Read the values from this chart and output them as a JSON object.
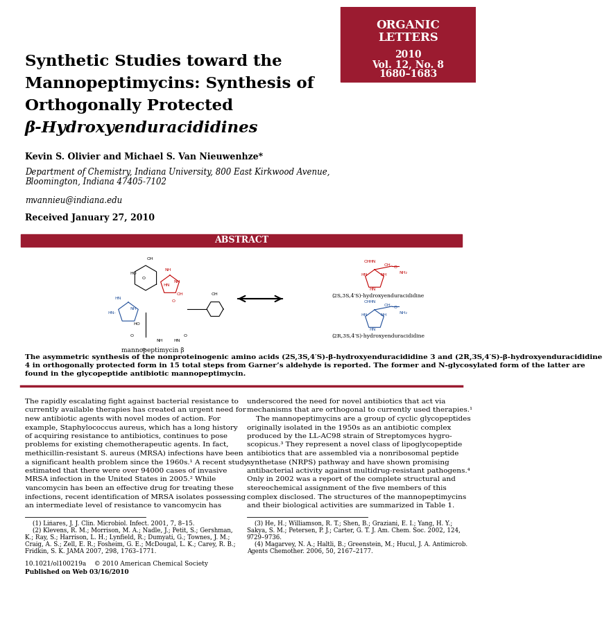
{
  "bg_color": "#ffffff",
  "journal_box_color": "#9B1B30",
  "journal_title_lines": [
    "ORGANIC",
    "LETTERS"
  ],
  "journal_info_lines": [
    "2010",
    "Vol. 12, No. 8",
    "1680–1683"
  ],
  "paper_title_lines": [
    "Synthetic Studies toward the",
    "Mannopeptimycins: Synthesis of",
    "Orthogonally Protected",
    "β-Hydroxyenduracididines"
  ],
  "authors": "Kevin S. Olivier and Michael S. Van Nieuwenhze*",
  "affiliation1": "Department of Chemistry, Indiana University, 800 East Kirkwood Avenue,",
  "affiliation2": "Bloomington, Indiana 47405-7102",
  "email": "mvannieu@indiana.edu",
  "received": "Received January 27, 2010",
  "abstract_label": "ABSTRACT",
  "abstract_bar_color": "#9B1B30",
  "mannopeptimycin_label": "mannopeptimycin β",
  "compound1_label": "(2S,3S,4′S)-hydroxyenduracididine",
  "compound2_label": "(2R,3S,4′S)-hydroxyenduracididine",
  "abstract_text_line1": "The asymmetric synthesis of the nonproteinogenic amino acids (2S,3S,4′S)-β-hydroxyenduracididine 3 and (2R,3S,4′S)-β-hydroxyenduracididine",
  "abstract_text_line2": "4 in orthogonally protected form in 15 total steps from Garner’s aldehyde is reported. The former and N-glycosylated form of the latter are",
  "abstract_text_line3": "found in the glycopeptide antibiotic mannopeptimycin.",
  "body_col1_lines": [
    "The rapidly escalating fight against bacterial resistance to",
    "currently available therapies has created an urgent need for",
    "new antibiotic agents with novel modes of action. For",
    "example, Staphylococcus aureus, which has a long history",
    "of acquiring resistance to antibiotics, continues to pose",
    "problems for existing chemotherapeutic agents. In fact,",
    "methicillin-resistant S. aureus (MRSA) infections have been",
    "a significant health problem since the 1960s.¹ A recent study",
    "estimated that there were over 94000 cases of invasive",
    "MRSA infection in the United States in 2005.² While",
    "vancomycin has been an effective drug for treating these",
    "infections, recent identification of MRSA isolates possessing",
    "an intermediate level of resistance to vancomycin has"
  ],
  "body_col2_lines": [
    "underscored the need for novel antibiotics that act via",
    "mechanisms that are orthogonal to currently used therapies.¹",
    "    The mannopeptimycins are a group of cyclic glycopeptides",
    "originally isolated in the 1950s as an antibiotic complex",
    "produced by the LL-AC98 strain of Streptomyces hygro-",
    "scopicus.³ They represent a novel class of lipoglycopeptide",
    "antibiotics that are assembled via a nonribosomal peptide",
    "synthetase (NRPS) pathway and have shown promising",
    "antibacterial activity against multidrug-resistant pathogens.⁴",
    "Only in 2002 was a report of the complete structural and",
    "stereochemical assignment of the five members of this",
    "complex disclosed. The structures of the mannopeptimycins",
    "and their biological activities are summarized in Table 1."
  ],
  "footnote_col1_lines": [
    "    (1) Liñares, J. J. Clin. Microbiol. Infect. 2001, 7, 8–15.",
    "    (2) Klevens, R. M.; Morrison, M. A.; Nadle, J.; Petit, S.; Gershman,",
    "K.; Ray, S.; Harrison, L. H.; Lynfield, R.; Dumyati, G.; Townes, J. M.;",
    "Craig, A. S.; Zell, E. R.; Fosheim, G. E.; McDougal, L. K.; Carey, R. B.;",
    "Fridkin, S. K. JAMA 2007, 298, 1763–1771."
  ],
  "footnote_col2_lines": [
    "    (3) He, H.; Williamson, R. T.; Shen, B.; Graziani, E. I.; Yang, H. Y.;",
    "Sakya, S. M.; Petersen, P. J.; Carter, G. T. J. Am. Chem. Soc. 2002, 124,",
    "9729–9736.",
    "    (4) Magarvey, N. A.; Haltli, B.; Greenstein, M.; Hucul, J. A. Antimicrob.",
    "Agents Chemother. 2006, 50, 2167–2177."
  ],
  "doi_line": "10.1021/ol100219a    © 2010 American Chemical Society",
  "published_line": "Published on Web 03/16/2010",
  "separator_color": "#9B1B30"
}
